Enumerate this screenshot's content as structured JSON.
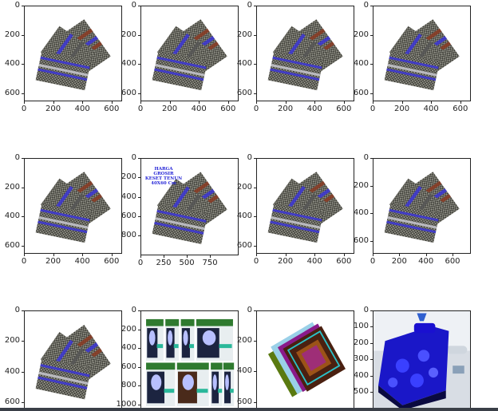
{
  "chart_data": [
    {
      "type": "image",
      "image": "rug",
      "xticks": [
        0,
        200,
        400,
        600
      ],
      "yticks": [
        0,
        200,
        400,
        600
      ],
      "xlim": [
        0,
        672
      ],
      "ylim": [
        0,
        655
      ]
    },
    {
      "type": "image",
      "image": "rug",
      "xticks": [
        0,
        200,
        400,
        600
      ],
      "yticks": [
        0,
        200,
        400,
        600
      ],
      "xlim": [
        0,
        672
      ],
      "ylim": [
        0,
        655
      ]
    },
    {
      "type": "image",
      "image": "rug",
      "xticks": [
        0,
        200,
        400,
        600
      ],
      "yticks": [
        0,
        200,
        400,
        600
      ],
      "xlim": [
        0,
        672
      ],
      "ylim": [
        0,
        655
      ]
    },
    {
      "type": "image",
      "image": "rug",
      "xticks": [
        0,
        200,
        400,
        600
      ],
      "yticks": [
        0,
        200,
        400,
        600
      ],
      "xlim": [
        0,
        672
      ],
      "ylim": [
        0,
        655
      ]
    },
    {
      "type": "image",
      "image": "rug",
      "xticks": [
        0,
        200,
        400,
        600
      ],
      "yticks": [
        0,
        200,
        400,
        600
      ],
      "xlim": [
        0,
        672
      ],
      "ylim": [
        0,
        655
      ]
    },
    {
      "type": "image",
      "image": "rug",
      "overlay_text": [
        "HARGA GROSIR",
        "KESET TENUN",
        "40X60 Cm"
      ],
      "xticks": [
        0,
        250,
        500,
        750
      ],
      "yticks": [
        0,
        200,
        400,
        600,
        800
      ],
      "xlim": [
        0,
        1060
      ],
      "ylim": [
        0,
        1006
      ]
    },
    {
      "type": "image",
      "image": "rug",
      "xticks": [
        0,
        200,
        400,
        600
      ],
      "yticks": [
        0,
        200,
        400,
        600
      ],
      "xlim": [
        0,
        672
      ],
      "ylim": [
        0,
        655
      ]
    },
    {
      "type": "image",
      "image": "rug",
      "xticks": [
        0,
        200,
        400,
        600
      ],
      "yticks": [
        0,
        200,
        400,
        600
      ],
      "xlim": [
        0,
        738
      ],
      "ylim": [
        0,
        692
      ]
    },
    {
      "type": "image",
      "image": "rug",
      "xticks": [],
      "yticks": [
        0,
        200,
        400,
        600
      ],
      "xlim": [
        0,
        672
      ],
      "ylim": [
        0,
        655
      ]
    },
    {
      "type": "image",
      "image": "hair-dye-packs",
      "xticks": [],
      "yticks": [
        0,
        200,
        400,
        600,
        800,
        1000
      ],
      "xlim": [
        0,
        1060
      ],
      "ylim": [
        0,
        1068
      ]
    },
    {
      "type": "image",
      "image": "prayer-mats",
      "xticks": [],
      "yticks": [
        0,
        200,
        400,
        600
      ],
      "xlim": [
        0,
        700
      ],
      "ylim": [
        0,
        660
      ]
    },
    {
      "type": "image",
      "image": "blue-bed",
      "xticks": [],
      "yticks": [
        0,
        100,
        200,
        300,
        400,
        500
      ],
      "xlim": [
        0,
        600
      ],
      "ylim": [
        0,
        617
      ]
    }
  ],
  "colors": {
    "rug_blue": "#3b35d6",
    "rug_red": "#8a3a22",
    "rug_dark": "#3c3c36",
    "bed_blue": "#1a17c8",
    "bottom_bar": "#3a3f47"
  }
}
